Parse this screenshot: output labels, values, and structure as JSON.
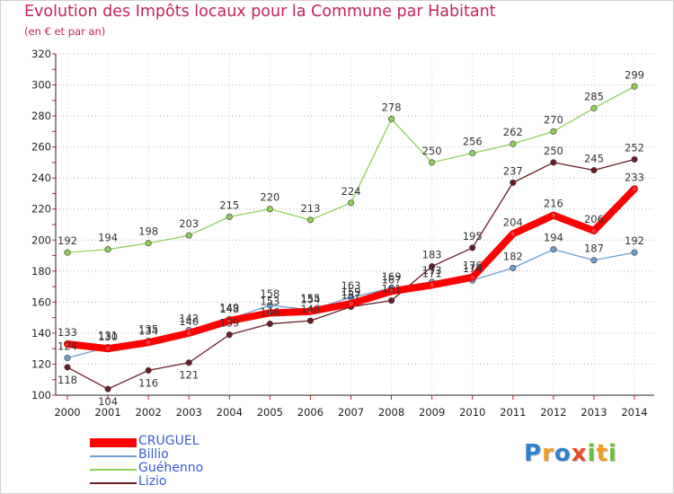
{
  "chart_data": {
    "type": "line",
    "title": "Evolution des Impôts locaux pour la Commune par Habitant",
    "subtitle": "(en € et par an)",
    "xlabel": "",
    "ylabel": "",
    "x": [
      2000,
      2001,
      2002,
      2003,
      2004,
      2005,
      2006,
      2007,
      2008,
      2009,
      2010,
      2011,
      2012,
      2013,
      2014
    ],
    "ylim": [
      100,
      320
    ],
    "yticks": [
      100,
      120,
      140,
      160,
      180,
      200,
      220,
      240,
      260,
      280,
      300,
      320
    ],
    "grid": "horizontal-dotted",
    "legend_position": "bottom-left",
    "series": [
      {
        "name": "CRUGUEL",
        "color": "#ff0000",
        "labelColor": "#333333",
        "emphasis": true,
        "values": [
          133,
          130,
          134,
          140,
          148,
          153,
          154,
          159,
          167,
          171,
          176,
          204,
          216,
          206,
          233
        ],
        "labels": [
          "133",
          "130",
          "134",
          "140",
          "148",
          "153",
          "154",
          "159",
          "167",
          "171",
          "176",
          "204",
          "216",
          "206",
          "233"
        ]
      },
      {
        "name": "Billio",
        "color": "#6f9fcf",
        "labelColor": "#333333",
        "emphasis": false,
        "values": [
          124,
          131,
          135,
          142,
          149,
          158,
          155,
          163,
          169,
          173,
          174,
          182,
          194,
          187,
          192
        ],
        "labels": [
          "124",
          "131",
          "135",
          "142",
          "149",
          "158",
          "155",
          "163",
          "169",
          "173",
          "174",
          "182",
          "194",
          "187",
          "192"
        ]
      },
      {
        "name": "Guéhenno",
        "color": "#8fd15a",
        "labelColor": "#333333",
        "emphasis": false,
        "values": [
          192,
          194,
          198,
          203,
          215,
          220,
          213,
          224,
          278,
          250,
          256,
          262,
          270,
          285,
          299
        ],
        "labels": [
          "192",
          "194",
          "198",
          "203",
          "215",
          "220",
          "213",
          "224",
          "278",
          "250",
          "256",
          "262",
          "270",
          "285",
          "299"
        ]
      },
      {
        "name": "Lizio",
        "color": "#6b1c26",
        "labelColor": "#333333",
        "emphasis": false,
        "values": [
          118,
          104,
          116,
          121,
          139,
          146,
          148,
          157,
          161,
          183,
          195,
          237,
          250,
          245,
          252
        ],
        "labels": [
          "118",
          "104",
          "116",
          "121",
          "139",
          "146",
          "148",
          "157",
          "161",
          "183",
          "195",
          "237",
          "250",
          "245",
          "252"
        ]
      }
    ]
  },
  "legend": {
    "items": [
      {
        "label": "CRUGUEL",
        "color": "#ff0000"
      },
      {
        "label": "Billio",
        "color": "#6f9fcf"
      },
      {
        "label": "Guéhenno",
        "color": "#8fd15a"
      },
      {
        "label": "Lizio",
        "color": "#6b1c26"
      }
    ]
  },
  "logo": {
    "letters": [
      "P",
      "r",
      "o",
      "x",
      "i",
      "t",
      "i"
    ],
    "colors": [
      "#2f7fd1",
      "#f29a1f",
      "#2f7fd1",
      "#e84a2a",
      "#6cbf3a",
      "#f29a1f",
      "#6cbf3a"
    ]
  }
}
